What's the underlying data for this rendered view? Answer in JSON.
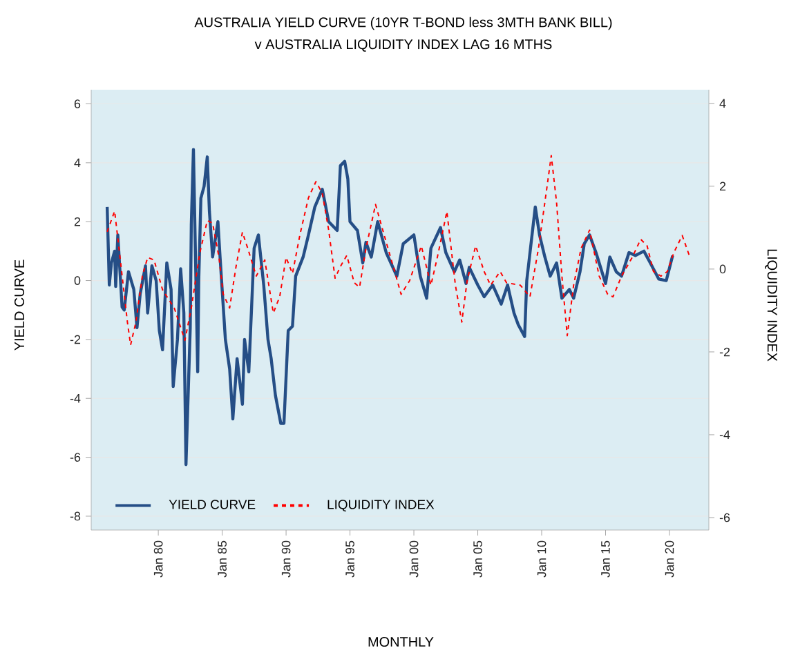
{
  "chart_data": {
    "type": "line",
    "title": "AUSTRALIA YIELD CURVE (10YR T-BOND less 3MTH BANK BILL)",
    "subtitle": "v AUSTRALIA LIQUIDITY INDEX LAG 16 MTHS",
    "xlabel": "MONTHLY",
    "ylabel": "YIELD CURVE",
    "y2label": "LIQUIDITY INDEX",
    "xlim": [
      "1974-10",
      "2023-02"
    ],
    "ylim": [
      -8.47,
      6.48
    ],
    "y2lim": [
      -6.3,
      4.33
    ],
    "xticks": [
      {
        "value": "1980-01",
        "label": "Jan 80"
      },
      {
        "value": "1985-01",
        "label": "Jan 85"
      },
      {
        "value": "1990-01",
        "label": "Jan 90"
      },
      {
        "value": "1995-01",
        "label": "Jan 95"
      },
      {
        "value": "2000-01",
        "label": "Jan 00"
      },
      {
        "value": "2005-01",
        "label": "Jan 05"
      },
      {
        "value": "2010-01",
        "label": "Jan 10"
      },
      {
        "value": "2015-01",
        "label": "Jan 15"
      },
      {
        "value": "2020-01",
        "label": "Jan 20"
      }
    ],
    "yticks": [
      -8,
      -6,
      -4,
      -2,
      0,
      2,
      4,
      6
    ],
    "y2ticks": [
      -6,
      -4,
      -2,
      0,
      2,
      4
    ],
    "grid": "y",
    "legend": "bottom left",
    "marker": "none",
    "series": [
      {
        "name": "YIELD CURVE",
        "color": "#254e86",
        "line_style": "solid",
        "x": [
          "1976-01",
          "1976-03",
          "1976-05",
          "1976-08",
          "1976-09",
          "1976-11",
          "1977-03",
          "1977-05",
          "1977-09",
          "1978-02",
          "1978-05",
          "1978-08",
          "1979-01",
          "1979-03",
          "1979-07",
          "1979-11",
          "1980-02",
          "1980-05",
          "1980-09",
          "1981-01",
          "1981-03",
          "1981-07",
          "1981-10",
          "1982-01",
          "1982-03",
          "1982-07",
          "1982-08",
          "1982-10",
          "1983-02",
          "1983-03",
          "1983-05",
          "1983-08",
          "1983-11",
          "1984-01",
          "1984-04",
          "1984-09",
          "1984-11",
          "1985-04",
          "1985-08",
          "1985-11",
          "1986-03",
          "1986-08",
          "1986-10",
          "1987-02",
          "1987-07",
          "1987-11",
          "1988-04",
          "1988-08",
          "1988-11",
          "1989-03",
          "1989-08",
          "1989-11",
          "1990-03",
          "1990-07",
          "1990-10",
          "1991-05",
          "1991-10",
          "1992-04",
          "1992-11",
          "1993-05",
          "1994-01",
          "1994-04",
          "1994-08",
          "1994-11",
          "1995-01",
          "1995-08",
          "1996-01",
          "1996-04",
          "1996-09",
          "1997-03",
          "1997-11",
          "1998-09",
          "1999-03",
          "2000-01",
          "2000-07",
          "2001-01",
          "2001-05",
          "2002-02",
          "2002-07",
          "2003-03",
          "2003-08",
          "2004-02",
          "2004-05",
          "2005-01",
          "2005-07",
          "2006-03",
          "2006-11",
          "2007-05",
          "2007-11",
          "2008-03",
          "2008-09",
          "2008-11",
          "2009-07",
          "2009-11",
          "2010-04",
          "2010-09",
          "2011-03",
          "2011-08",
          "2012-03",
          "2012-07",
          "2013-01",
          "2013-05",
          "2013-10",
          "2014-04",
          "2015-01",
          "2015-05",
          "2015-11",
          "2016-04",
          "2016-11",
          "2017-05",
          "2018-01",
          "2018-07",
          "2019-03",
          "2019-10",
          "2020-04"
        ],
        "values": [
          2.5,
          -0.15,
          0.6,
          1.0,
          -0.2,
          1.55,
          -0.9,
          -1.0,
          0.3,
          -0.3,
          -1.6,
          -0.45,
          0.5,
          -1.1,
          0.5,
          0.0,
          -1.7,
          -2.35,
          0.6,
          -0.3,
          -3.6,
          -2.0,
          0.4,
          -1.1,
          -6.25,
          -1.6,
          1.9,
          4.45,
          -3.1,
          0.0,
          2.8,
          3.2,
          4.2,
          2.35,
          0.8,
          2.0,
          0.8,
          -2.0,
          -3.0,
          -4.7,
          -2.65,
          -4.2,
          -2.0,
          -3.1,
          1.1,
          1.55,
          -0.15,
          -2.0,
          -2.65,
          -3.9,
          -4.85,
          -4.85,
          -1.7,
          -1.55,
          0.15,
          0.8,
          1.55,
          2.5,
          3.1,
          2.0,
          1.7,
          3.9,
          4.05,
          3.45,
          2.0,
          1.7,
          0.6,
          1.3,
          0.8,
          2.0,
          0.95,
          0.15,
          1.25,
          1.55,
          0.15,
          -0.6,
          1.1,
          1.8,
          0.95,
          0.3,
          0.7,
          -0.1,
          0.45,
          -0.15,
          -0.55,
          -0.15,
          -0.8,
          -0.15,
          -1.1,
          -1.5,
          -1.9,
          0.0,
          2.5,
          1.55,
          0.8,
          0.15,
          0.6,
          -0.6,
          -0.3,
          -0.6,
          0.3,
          1.25,
          1.55,
          0.95,
          -0.1,
          0.8,
          0.3,
          0.15,
          0.95,
          0.85,
          1.0,
          0.6,
          0.05,
          0.0,
          0.85
        ]
      },
      {
        "name": "LIQUIDITY INDEX",
        "color": "#ff0000",
        "line_style": "dashed",
        "axis": "y2",
        "x": [
          "1976-01",
          "1976-08",
          "1977-01",
          "1977-08",
          "1977-11",
          "1978-04",
          "1978-10",
          "1979-03",
          "1979-09",
          "1980-05",
          "1981-04",
          "1982-02",
          "1982-08",
          "1983-04",
          "1983-11",
          "1984-04",
          "1984-10",
          "1985-02",
          "1985-08",
          "1986-02",
          "1986-08",
          "1987-01",
          "1987-09",
          "1988-05",
          "1989-01",
          "1989-07",
          "1990-01",
          "1990-07",
          "1991-02",
          "1991-10",
          "1992-05",
          "1992-11",
          "1993-05",
          "1993-11",
          "1994-04",
          "1994-10",
          "1995-05",
          "1995-10",
          "1996-04",
          "1997-01",
          "1997-09",
          "1998-07",
          "1999-01",
          "1999-09",
          "2000-08",
          "2001-05",
          "2001-11",
          "2002-08",
          "2003-04",
          "2003-10",
          "2004-03",
          "2004-11",
          "2005-07",
          "2006-01",
          "2006-10",
          "2007-04",
          "2008-05",
          "2009-02",
          "2009-10",
          "2010-07",
          "2010-10",
          "2011-03",
          "2011-08",
          "2012-01",
          "2012-07",
          "2013-02",
          "2013-10",
          "2014-07",
          "2015-03",
          "2015-08",
          "2016-04",
          "2017-02",
          "2017-10",
          "2018-04",
          "2018-10",
          "2019-05",
          "2019-11",
          "2020-05",
          "2021-01",
          "2021-08"
        ],
        "values": [
          0.9,
          1.4,
          0.3,
          -1.28,
          -1.83,
          -1.28,
          -0.17,
          0.28,
          0.22,
          -0.5,
          -0.94,
          -1.72,
          -0.94,
          0.39,
          1.17,
          1.11,
          0.28,
          -0.61,
          -0.94,
          0.06,
          0.89,
          0.5,
          -0.17,
          0.22,
          -1.06,
          -0.67,
          0.28,
          -0.11,
          0.83,
          1.72,
          2.11,
          1.83,
          0.94,
          -0.22,
          0.06,
          0.33,
          -0.33,
          -0.44,
          0.5,
          1.56,
          0.83,
          -0.06,
          -0.61,
          -0.28,
          0.56,
          -0.39,
          0.28,
          1.39,
          -0.39,
          -1.28,
          -0.28,
          0.56,
          -0.06,
          -0.39,
          -0.06,
          -0.33,
          -0.39,
          -0.67,
          0.5,
          2.17,
          2.74,
          1.61,
          -0.17,
          -1.61,
          -0.39,
          0.5,
          0.94,
          -0.17,
          -0.61,
          -0.67,
          -0.17,
          0.28,
          0.72,
          0.56,
          -0.06,
          -0.17,
          -0.06,
          0.39,
          0.81,
          0.3
        ]
      }
    ]
  }
}
